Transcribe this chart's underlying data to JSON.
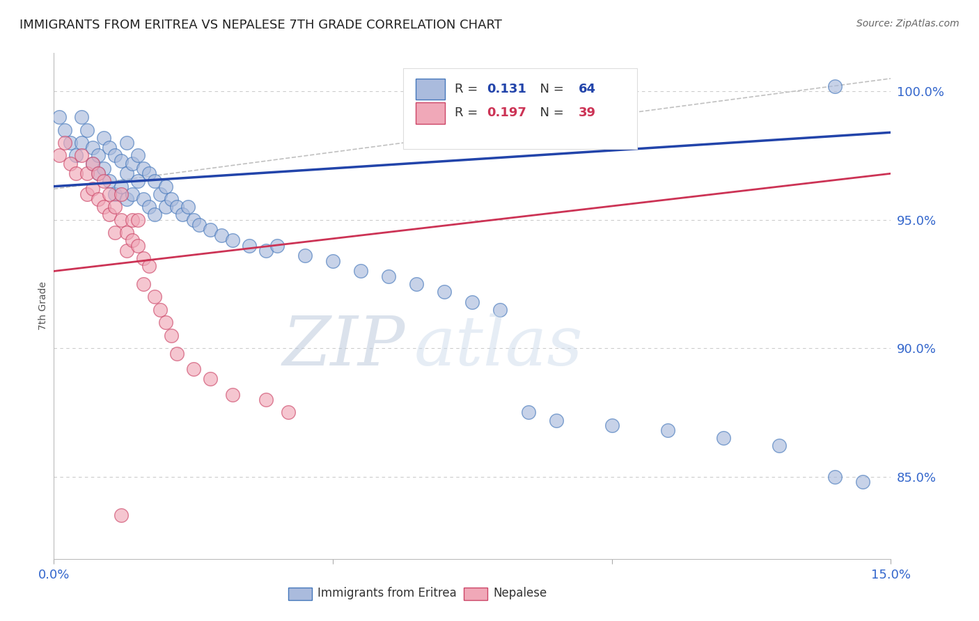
{
  "title": "IMMIGRANTS FROM ERITREA VS NEPALESE 7TH GRADE CORRELATION CHART",
  "source": "Source: ZipAtlas.com",
  "ylabel_label": "7th Grade",
  "R1": 0.131,
  "N1": 64,
  "R2": 0.197,
  "N2": 39,
  "xlim": [
    0.0,
    0.15
  ],
  "ylim": [
    0.818,
    1.015
  ],
  "yticks": [
    0.85,
    0.9,
    0.95,
    1.0
  ],
  "ytick_labels": [
    "85.0%",
    "90.0%",
    "95.0%",
    "100.0%"
  ],
  "xticks": [
    0.0,
    0.05,
    0.1,
    0.15
  ],
  "xtick_labels": [
    "0.0%",
    "",
    "",
    "15.0%"
  ],
  "blue_color": "#aabbdd",
  "pink_color": "#f0a8b8",
  "blue_edge_color": "#4477bb",
  "pink_edge_color": "#cc4466",
  "blue_line_color": "#2244aa",
  "pink_line_color": "#cc3355",
  "grid_color": "#cccccc",
  "blue_x": [
    0.001,
    0.002,
    0.003,
    0.004,
    0.005,
    0.005,
    0.006,
    0.007,
    0.007,
    0.008,
    0.008,
    0.009,
    0.009,
    0.01,
    0.01,
    0.011,
    0.011,
    0.012,
    0.012,
    0.013,
    0.013,
    0.013,
    0.014,
    0.014,
    0.015,
    0.015,
    0.016,
    0.016,
    0.017,
    0.017,
    0.018,
    0.018,
    0.019,
    0.02,
    0.02,
    0.021,
    0.022,
    0.023,
    0.024,
    0.025,
    0.026,
    0.028,
    0.03,
    0.032,
    0.035,
    0.038,
    0.04,
    0.045,
    0.05,
    0.055,
    0.06,
    0.065,
    0.07,
    0.075,
    0.08,
    0.085,
    0.09,
    0.1,
    0.11,
    0.12,
    0.13,
    0.14,
    0.145,
    0.14
  ],
  "blue_y": [
    0.99,
    0.985,
    0.98,
    0.975,
    0.99,
    0.98,
    0.985,
    0.978,
    0.972,
    0.975,
    0.968,
    0.982,
    0.97,
    0.978,
    0.965,
    0.975,
    0.96,
    0.973,
    0.963,
    0.98,
    0.968,
    0.958,
    0.972,
    0.96,
    0.975,
    0.965,
    0.97,
    0.958,
    0.968,
    0.955,
    0.965,
    0.952,
    0.96,
    0.963,
    0.955,
    0.958,
    0.955,
    0.952,
    0.955,
    0.95,
    0.948,
    0.946,
    0.944,
    0.942,
    0.94,
    0.938,
    0.94,
    0.936,
    0.934,
    0.93,
    0.928,
    0.925,
    0.922,
    0.918,
    0.915,
    0.875,
    0.872,
    0.87,
    0.868,
    0.865,
    0.862,
    0.85,
    0.848,
    1.002
  ],
  "pink_x": [
    0.001,
    0.002,
    0.003,
    0.004,
    0.005,
    0.006,
    0.006,
    0.007,
    0.007,
    0.008,
    0.008,
    0.009,
    0.009,
    0.01,
    0.01,
    0.011,
    0.011,
    0.012,
    0.012,
    0.013,
    0.013,
    0.014,
    0.014,
    0.015,
    0.015,
    0.016,
    0.016,
    0.017,
    0.018,
    0.019,
    0.02,
    0.021,
    0.022,
    0.025,
    0.028,
    0.032,
    0.038,
    0.042,
    0.012
  ],
  "pink_y": [
    0.975,
    0.98,
    0.972,
    0.968,
    0.975,
    0.968,
    0.96,
    0.972,
    0.962,
    0.968,
    0.958,
    0.965,
    0.955,
    0.96,
    0.952,
    0.955,
    0.945,
    0.96,
    0.95,
    0.945,
    0.938,
    0.95,
    0.942,
    0.95,
    0.94,
    0.935,
    0.925,
    0.932,
    0.92,
    0.915,
    0.91,
    0.905,
    0.898,
    0.892,
    0.888,
    0.882,
    0.88,
    0.875,
    0.835
  ],
  "blue_trendline_x": [
    0.0,
    0.15
  ],
  "blue_trendline_y": [
    0.963,
    0.984
  ],
  "pink_trendline_x": [
    0.0,
    0.15
  ],
  "pink_trendline_y": [
    0.93,
    0.968
  ],
  "diag_line_x": [
    0.0,
    0.15
  ],
  "diag_line_y": [
    0.962,
    1.005
  ],
  "watermark_zip": "ZIP",
  "watermark_atlas": "atlas",
  "watermark_color_zip": "#c5d5e8",
  "watermark_color_atlas": "#c5d5e8",
  "legend_label1": "Immigrants from Eritrea",
  "legend_label2": "Nepalese"
}
